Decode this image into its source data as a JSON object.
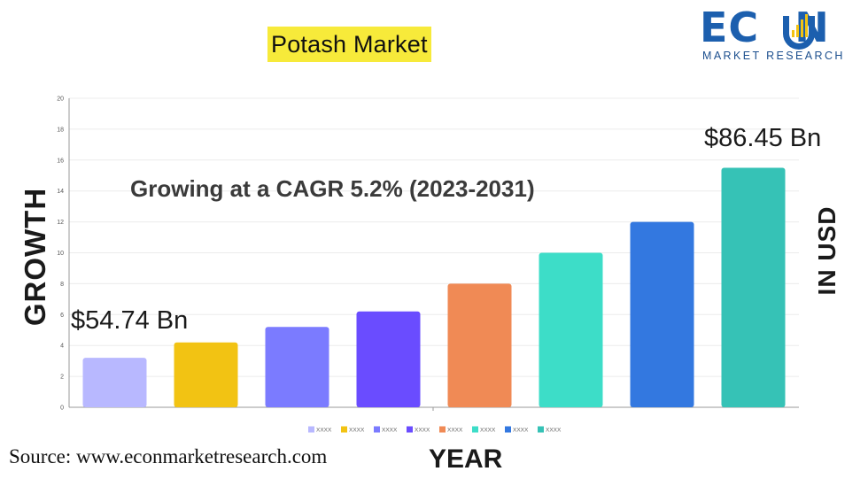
{
  "header": {
    "title": "Potash Market"
  },
  "logo": {
    "brand_left": "EC",
    "brand_right": "N",
    "tagline": "MARKET RESEARCH"
  },
  "axis_labels": {
    "y_left": "GROWTH",
    "y_right": "IN USD",
    "x": "YEAR"
  },
  "source": "Source: www.econmarketresearch.com",
  "colors": {
    "title_highlight": "#f7ea3a",
    "brand": "#1c5fae",
    "grid": "#ececec"
  },
  "chart_data": {
    "type": "bar",
    "subtitle": "Growing at a CAGR 5.2% (2023-2031)",
    "categories": [
      "XXXX",
      "XXXX",
      "XXXX",
      "XXXX",
      "XXXX",
      "XXXX",
      "XXXX",
      "XXXX"
    ],
    "values": [
      3.2,
      4.2,
      5.2,
      6.2,
      8.0,
      10.0,
      12.0,
      15.5
    ],
    "colors": [
      "#b8b8ff",
      "#f2c313",
      "#7b7bff",
      "#6a4cff",
      "#f08a55",
      "#3dddc8",
      "#3378e0",
      "#36c2b6"
    ],
    "ylim": [
      0,
      20
    ],
    "yticks": [
      "0",
      "2",
      "4",
      "6",
      "8",
      "10",
      "12",
      "14",
      "16",
      "18",
      "20"
    ],
    "grid": true,
    "legend": "bottom",
    "annotations": {
      "first": "$54.74 Bn",
      "last": "$86.45 Bn"
    }
  }
}
